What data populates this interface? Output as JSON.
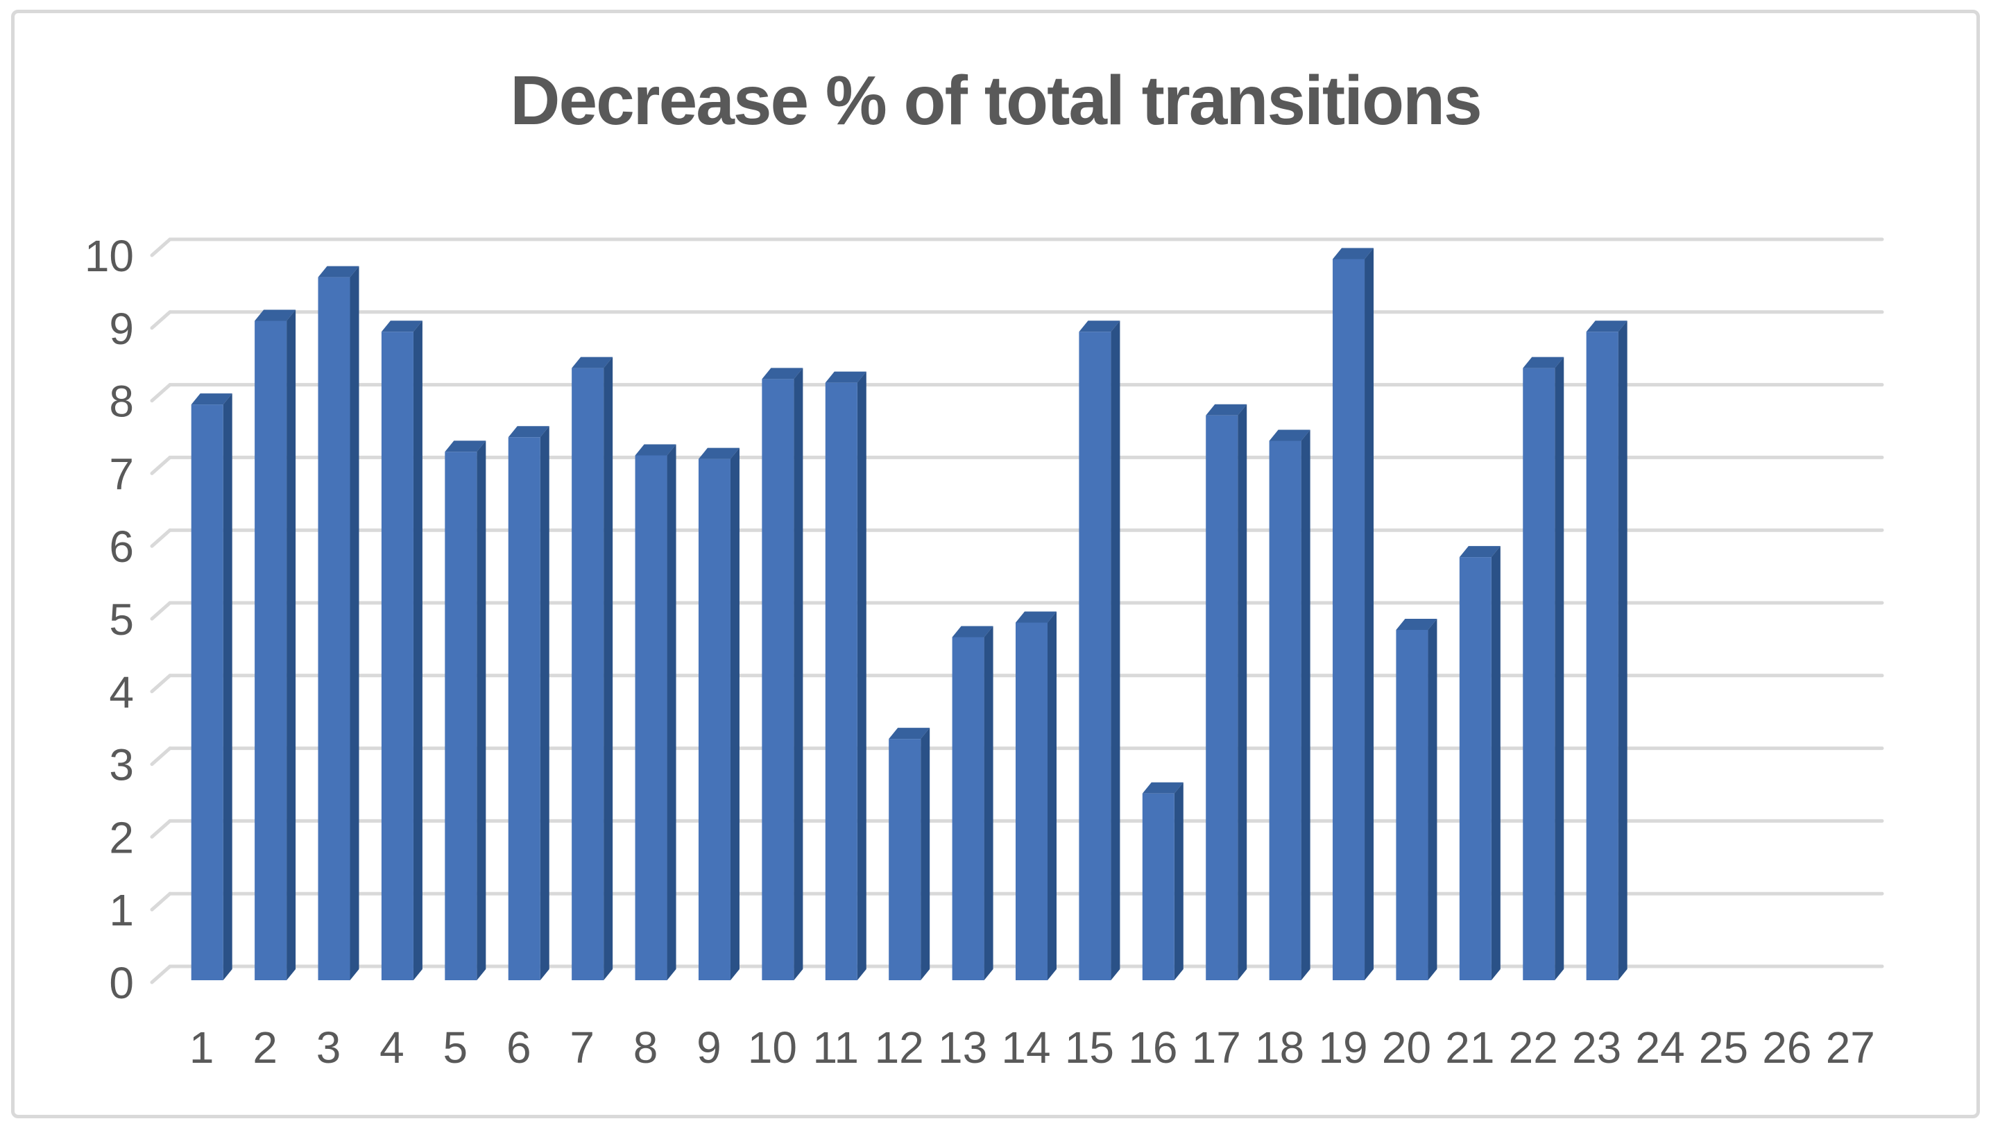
{
  "title": "Decrease % of total transitions",
  "chart_data": {
    "type": "bar",
    "title": "Decrease % of total transitions",
    "xlabel": "",
    "ylabel": "",
    "categories": [
      "1",
      "2",
      "3",
      "4",
      "5",
      "6",
      "7",
      "8",
      "9",
      "10",
      "11",
      "12",
      "13",
      "14",
      "15",
      "16",
      "17",
      "18",
      "19",
      "20",
      "21",
      "22",
      "23",
      "24",
      "25",
      "26",
      "27"
    ],
    "values": [
      7.9,
      9.05,
      9.65,
      8.9,
      7.25,
      7.45,
      8.4,
      7.2,
      7.15,
      8.25,
      8.2,
      3.3,
      4.7,
      4.9,
      8.9,
      2.55,
      7.75,
      7.4,
      9.9,
      4.8,
      5.8,
      8.4,
      8.9,
      null,
      null,
      null,
      null
    ],
    "ylim": [
      0,
      10
    ],
    "yticks": [
      0,
      1,
      2,
      3,
      4,
      5,
      6,
      7,
      8,
      9,
      10
    ],
    "grid": true,
    "legend": false,
    "effect": "3d-column",
    "colors": {
      "bar_front": "#4673B8",
      "bar_top": "#36619E",
      "bar_side": "#2A5187",
      "gridline": "#D9D9D9",
      "axis_text": "#595959",
      "title_text": "#595959",
      "frame_border": "#D9D9D9",
      "background": "#FFFFFF"
    }
  }
}
